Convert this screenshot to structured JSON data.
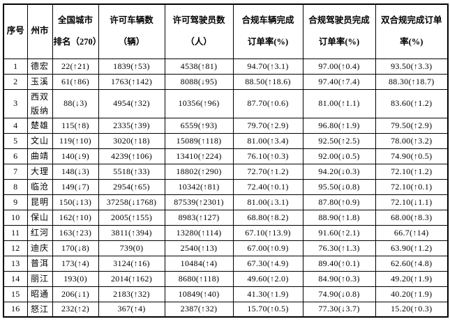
{
  "page": {
    "background_color": "#ffffff",
    "border_color": "#000000",
    "text_color": "#000000"
  },
  "table": {
    "column_keys": [
      "index",
      "city",
      "national_rank",
      "licensed_vehicles",
      "licensed_drivers",
      "compliant_vehicle_order_rate",
      "compliant_driver_order_rate",
      "dual_compliance_order_rate"
    ],
    "headers": [
      {
        "line1": "序号",
        "line2": ""
      },
      {
        "line1": "州市",
        "line2": ""
      },
      {
        "line1": "全国城市",
        "line2": "排名（270）"
      },
      {
        "line1": "许可车辆数",
        "line2": "（辆）"
      },
      {
        "line1": "许可驾驶员数",
        "line2": "（人）"
      },
      {
        "line1": "合规车辆完成",
        "line2": "订单率(%)"
      },
      {
        "line1": "合规驾驶员完成",
        "line2": "订单率(%)"
      },
      {
        "line1": "双合规完成订单",
        "line2": "率(%)"
      }
    ],
    "rows": [
      [
        "1",
        "德宏",
        "22(↑21)",
        "1839(↑53)",
        "4538(↑81)",
        "94.70(↑3.1)",
        "97.00(↑0.4)",
        "93.50(↑3.3)"
      ],
      [
        "2",
        "玉溪",
        "61(↑86)",
        "1763(↑142)",
        "8088(↓95)",
        "88.50(↑18.6)",
        "97.40(↑7.4)",
        "88.30(↑18.7)"
      ],
      [
        "3",
        "西双版纳",
        "88(↓3)",
        "4954(↑32)",
        "10356(↑96)",
        "87.70(↑0.6)",
        "81.00(↑1.1)",
        "83.60(↑1.2)"
      ],
      [
        "4",
        "楚雄",
        "115(↑8)",
        "2335(↑39)",
        "6559(↑93)",
        "79.70(↑2.9)",
        "96.80(↑1.9)",
        "79.50(↑2.9)"
      ],
      [
        "5",
        "文山",
        "119(↑10)",
        "3020(↑18)",
        "15089(↑118)",
        "81.00(↑3.4)",
        "92.50(↑2.5)",
        "78.00(↑3.2)"
      ],
      [
        "6",
        "曲靖",
        "140(↓9)",
        "4239(↑106)",
        "13410(↑224)",
        "76.10(↑0.3)",
        "92.00(↓0.5)",
        "74.90(↑0.5)"
      ],
      [
        "7",
        "大理",
        "148(↓3)",
        "5518(↑33)",
        "18802(↑290)",
        "72.70(↑1.2)",
        "94.20(↓0.3)",
        "72.10(↑1.2)"
      ],
      [
        "8",
        "临沧",
        "149(↓7)",
        "2954(↑65)",
        "10342(↑81)",
        "72.40(↑0.1)",
        "95.50(↓0.8)",
        "72.10(↑0.1)"
      ],
      [
        "9",
        "昆明",
        "150(↓13)",
        "37258(↓1768)",
        "87539(↑2301)",
        "81.00(↓3.1)",
        "87.80(↑0.9)",
        "72.10(↓1.1)"
      ],
      [
        "10",
        "保山",
        "162(↑10)",
        "2005(↑155)",
        "8983(↑127)",
        "68.80(↑8.2)",
        "88.90(↑1.8)",
        "68.00(↑8.3)"
      ],
      [
        "11",
        "红河",
        "163(↑23)",
        "3811(↑394)",
        "13280(↑114)",
        "67.10(↑13.9)",
        "91.60(↑2.1)",
        "66.7(↑14)"
      ],
      [
        "12",
        "迪庆",
        "170(↓8)",
        "739(0)",
        "2540(↑13)",
        "67.00(↑0.9)",
        "76.30(↑1.3)",
        "63.90(↑1.2)"
      ],
      [
        "13",
        "普洱",
        "173(↑4)",
        "3124(↑16)",
        "10484(↑4)",
        "67.30(↑4.9)",
        "89.40(↑0.1)",
        "62.60(↑4.8)"
      ],
      [
        "14",
        "丽江",
        "193(0)",
        "2014(↑162)",
        "8680(↑118)",
        "49.60(↑2.0)",
        "84.90(↑0.3)",
        "49.20(↑1.9)"
      ],
      [
        "15",
        "昭通",
        "206(↓1)",
        "2183(↑32)",
        "10849(↑40)",
        "41.30(↑1.9)",
        "74.90(↓0.8)",
        "40.20(↑1.9)"
      ],
      [
        "16",
        "怒江",
        "232(↑2)",
        "367(↑4)",
        "2387(↑32)",
        "15.70(↑0.5)",
        "77.30(↓3.7)",
        "15.20(↑0.3)"
      ]
    ]
  }
}
